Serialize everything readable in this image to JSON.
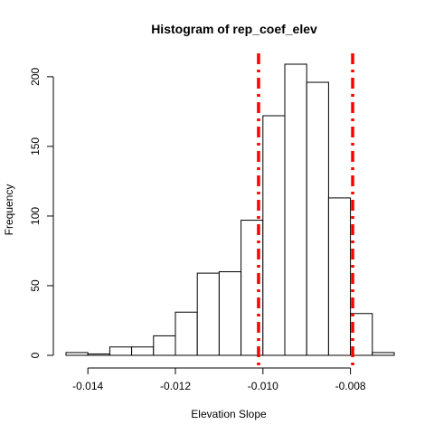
{
  "chart_data": {
    "type": "bar",
    "title": "Histogram of rep_coef_elev",
    "xlabel": "Elevation Slope",
    "ylabel": "Frequency",
    "bin_edges": [
      -0.0145,
      -0.014,
      -0.0135,
      -0.013,
      -0.0125,
      -0.012,
      -0.0115,
      -0.011,
      -0.0105,
      -0.01,
      -0.0095,
      -0.009,
      -0.0085,
      -0.008,
      -0.0075,
      -0.007
    ],
    "values": [
      2,
      1,
      6,
      6,
      14,
      31,
      59,
      60,
      97,
      172,
      209,
      196,
      113,
      30,
      2
    ],
    "xticks": [
      -0.014,
      -0.012,
      -0.01,
      -0.008
    ],
    "xtick_labels": [
      "-0.014",
      "-0.012",
      "-0.010",
      "-0.008"
    ],
    "yticks": [
      0,
      50,
      100,
      150,
      200
    ],
    "ytick_labels": [
      "0",
      "50",
      "100",
      "150",
      "200"
    ],
    "xlim": [
      -0.0145,
      -0.007
    ],
    "ylim": [
      0,
      215
    ],
    "reference_lines": [
      {
        "x": -0.0101,
        "color": "#ff0000",
        "style": "dot-dash"
      },
      {
        "x": -0.00795,
        "color": "#ff0000",
        "style": "dot-dash"
      }
    ],
    "grid": false
  }
}
